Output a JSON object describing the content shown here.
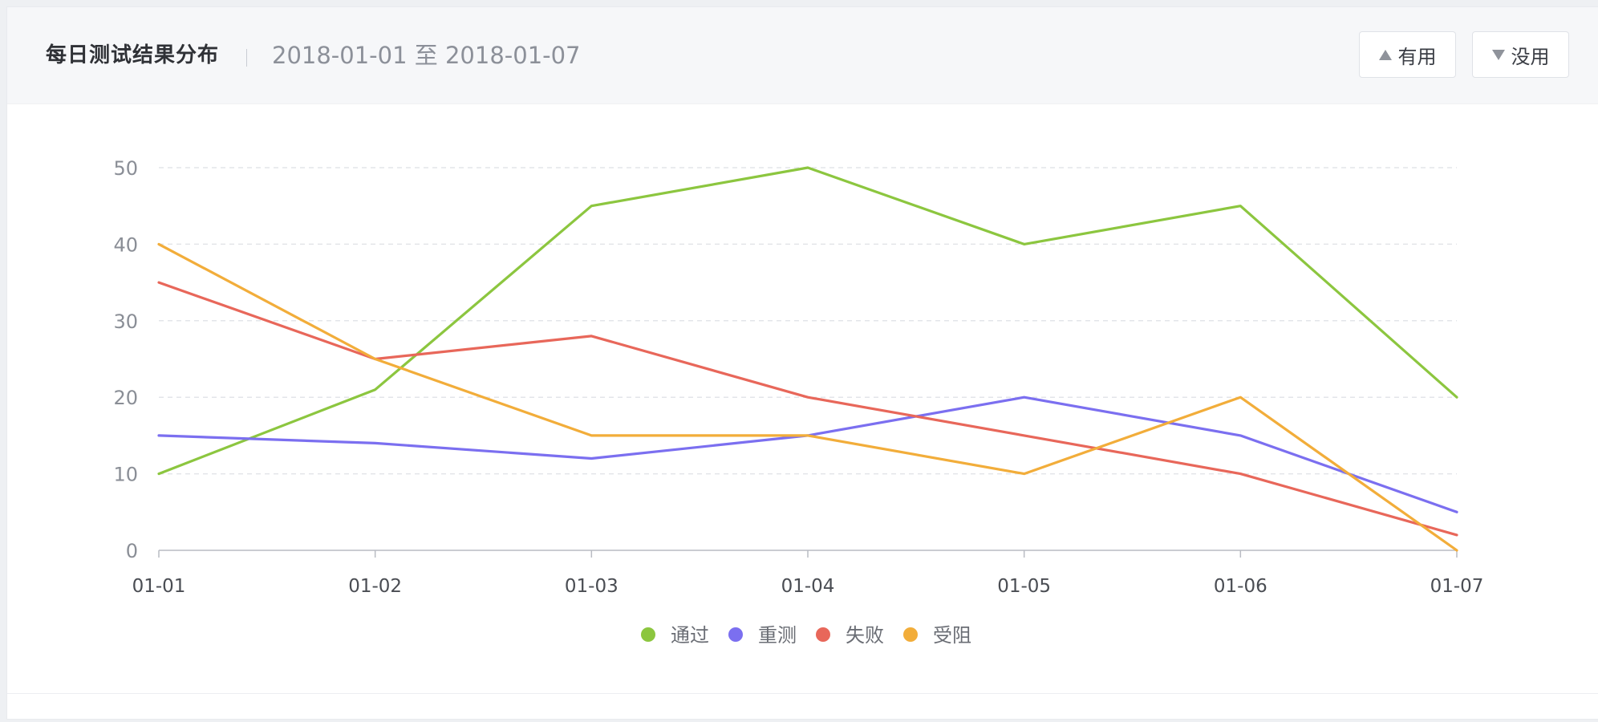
{
  "header": {
    "title": "每日测试结果分布",
    "date_range": "2018-01-01 至 2018-01-07",
    "useful_label": "有用",
    "useless_label": "没用",
    "useful_icon": "triangle-up-icon",
    "useless_icon": "triangle-down-icon"
  },
  "chart_data": {
    "type": "line",
    "categories": [
      "01-01",
      "01-02",
      "01-03",
      "01-04",
      "01-05",
      "01-06",
      "01-07"
    ],
    "yticks": [
      0,
      10,
      20,
      30,
      40,
      50
    ],
    "ylim": [
      0,
      50
    ],
    "grid": true,
    "legend_position": "bottom",
    "series": [
      {
        "name": "通过",
        "color": "#8cc63f",
        "values": [
          10,
          21,
          45,
          50,
          40,
          45,
          20
        ]
      },
      {
        "name": "重测",
        "color": "#7b6ff0",
        "values": [
          15,
          14,
          12,
          15,
          20,
          15,
          5
        ]
      },
      {
        "name": "失败",
        "color": "#e8675a",
        "values": [
          35,
          25,
          28,
          20,
          15,
          10,
          2
        ]
      },
      {
        "name": "受阻",
        "color": "#f2ad3a",
        "values": [
          40,
          25,
          15,
          15,
          10,
          20,
          0
        ]
      }
    ]
  }
}
